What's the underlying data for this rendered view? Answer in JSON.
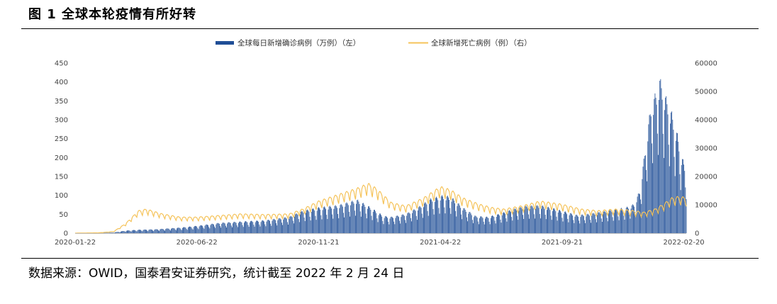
{
  "figure": {
    "title": "图 1 全球本轮疫情有所好转",
    "source": "数据来源：OWID，国泰君安证券研究，统计截至 2022 年 2 月 24 日"
  },
  "colors": {
    "bars": "#1f4e96",
    "line": "#f5c35a",
    "axis": "#bfbfbf"
  },
  "chart_data": {
    "type": "bar+line",
    "legend_position": "top-center",
    "grid": false,
    "x_axis": {
      "start": "2020-01-22",
      "end": "2022-02-23",
      "tick_labels": [
        "2020-01-22",
        "2020-06-22",
        "2020-11-21",
        "2021-04-22",
        "2021-09-21",
        "2022-02-20"
      ]
    },
    "y_left": {
      "range": [
        0,
        450
      ],
      "ticks": [
        0,
        50,
        100,
        150,
        200,
        250,
        300,
        350,
        400,
        450
      ]
    },
    "y_right": {
      "range": [
        0,
        60000
      ],
      "ticks": [
        0,
        10000,
        20000,
        30000,
        40000,
        50000,
        60000
      ]
    },
    "series": [
      {
        "name": "全球每日新增确诊病例（万例）（左）",
        "kind": "bar",
        "axis": "left",
        "approx_weekly_envelope": {
          "dates": [
            "2020-01-22",
            "2020-02-20",
            "2020-03-10",
            "2020-03-25",
            "2020-04-10",
            "2020-05-01",
            "2020-06-01",
            "2020-06-22",
            "2020-07-20",
            "2020-08-15",
            "2020-09-15",
            "2020-10-15",
            "2020-11-01",
            "2020-11-21",
            "2020-12-15",
            "2021-01-08",
            "2021-01-25",
            "2021-02-10",
            "2021-02-20",
            "2021-03-10",
            "2021-03-25",
            "2021-04-10",
            "2021-04-25",
            "2021-05-05",
            "2021-05-20",
            "2021-06-05",
            "2021-06-20",
            "2021-07-05",
            "2021-07-20",
            "2021-08-05",
            "2021-08-25",
            "2021-09-10",
            "2021-09-21",
            "2021-10-10",
            "2021-10-25",
            "2021-11-10",
            "2021-11-25",
            "2021-12-10",
            "2021-12-20",
            "2021-12-27",
            "2022-01-03",
            "2022-01-10",
            "2022-01-17",
            "2022-01-21",
            "2022-01-28",
            "2022-02-05",
            "2022-02-12",
            "2022-02-17",
            "2022-02-23"
          ],
          "values": [
            0.1,
            0.4,
            1.5,
            6,
            8,
            9,
            13,
            17,
            24,
            27,
            30,
            38,
            52,
            60,
            65,
            78,
            60,
            40,
            38,
            45,
            60,
            80,
            88,
            85,
            60,
            40,
            38,
            45,
            55,
            63,
            65,
            58,
            52,
            42,
            45,
            50,
            55,
            60,
            68,
            100,
            200,
            300,
            330,
            360,
            320,
            280,
            230,
            180,
            150
          ]
        }
      },
      {
        "name": "全球新增死亡病例（例）（右）",
        "kind": "line",
        "axis": "right",
        "approx_weekly_envelope": {
          "dates": [
            "2020-01-22",
            "2020-02-20",
            "2020-03-10",
            "2020-03-25",
            "2020-04-10",
            "2020-04-20",
            "2020-05-10",
            "2020-06-01",
            "2020-06-22",
            "2020-07-20",
            "2020-08-15",
            "2020-09-15",
            "2020-10-15",
            "2020-11-01",
            "2020-11-21",
            "2020-12-15",
            "2021-01-08",
            "2021-01-22",
            "2021-02-01",
            "2021-02-20",
            "2021-03-10",
            "2021-04-01",
            "2021-04-22",
            "2021-05-05",
            "2021-05-20",
            "2021-06-10",
            "2021-06-25",
            "2021-07-10",
            "2021-08-01",
            "2021-08-25",
            "2021-09-21",
            "2021-10-15",
            "2021-11-05",
            "2021-11-25",
            "2021-12-15",
            "2022-01-01",
            "2022-01-15",
            "2022-01-25",
            "2022-02-05",
            "2022-02-15",
            "2022-02-23"
          ],
          "values": [
            10,
            100,
            500,
            3000,
            7000,
            7500,
            6000,
            5000,
            5000,
            5500,
            6000,
            5800,
            6000,
            7500,
            10000,
            12000,
            14000,
            15500,
            14000,
            9500,
            8500,
            11000,
            14500,
            13500,
            11000,
            9000,
            8000,
            7500,
            8500,
            10000,
            9000,
            7500,
            7000,
            7500,
            7200,
            6500,
            7500,
            9000,
            11000,
            11500,
            11000
          ]
        }
      }
    ]
  }
}
